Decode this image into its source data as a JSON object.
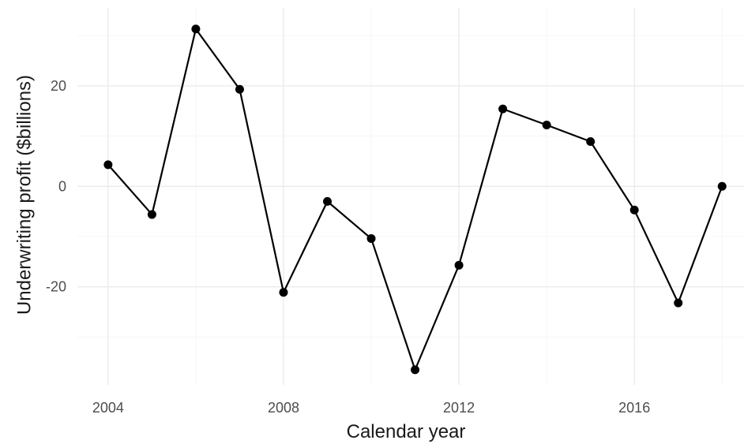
{
  "chart_data": {
    "type": "line",
    "title": "",
    "xlabel": "Calendar year",
    "ylabel": "Underwriting profit ($billions)",
    "x": [
      2004,
      2005,
      2006,
      2007,
      2008,
      2009,
      2010,
      2011,
      2012,
      2013,
      2014,
      2015,
      2016,
      2017,
      2018
    ],
    "series": [
      {
        "values": [
          4.3,
          -5.6,
          31.3,
          19.3,
          -21.1,
          -3.0,
          -10.4,
          -36.5,
          -15.7,
          15.4,
          12.2,
          8.9,
          -4.7,
          -23.2,
          0.0
        ]
      }
    ],
    "xlim": [
      2003.3,
      2018.5
    ],
    "ylim": [
      -39.5,
      35.5
    ],
    "x_major_ticks": [
      2004,
      2008,
      2012,
      2016
    ],
    "x_tick_labels": [
      "2004",
      "2008",
      "2012",
      "2016"
    ],
    "x_minor_ticks": [
      2006,
      2010,
      2014,
      2018
    ],
    "y_major_ticks": [
      -20,
      0,
      20
    ],
    "y_tick_labels": [
      "-20",
      "0",
      "20"
    ],
    "y_minor_ticks": [
      -30,
      -10,
      10,
      30
    ],
    "grid": true,
    "legend": "none",
    "colors": {
      "line": "#000000",
      "point": "#000000",
      "grid": "#ebebeb",
      "background": "#ffffff"
    }
  }
}
